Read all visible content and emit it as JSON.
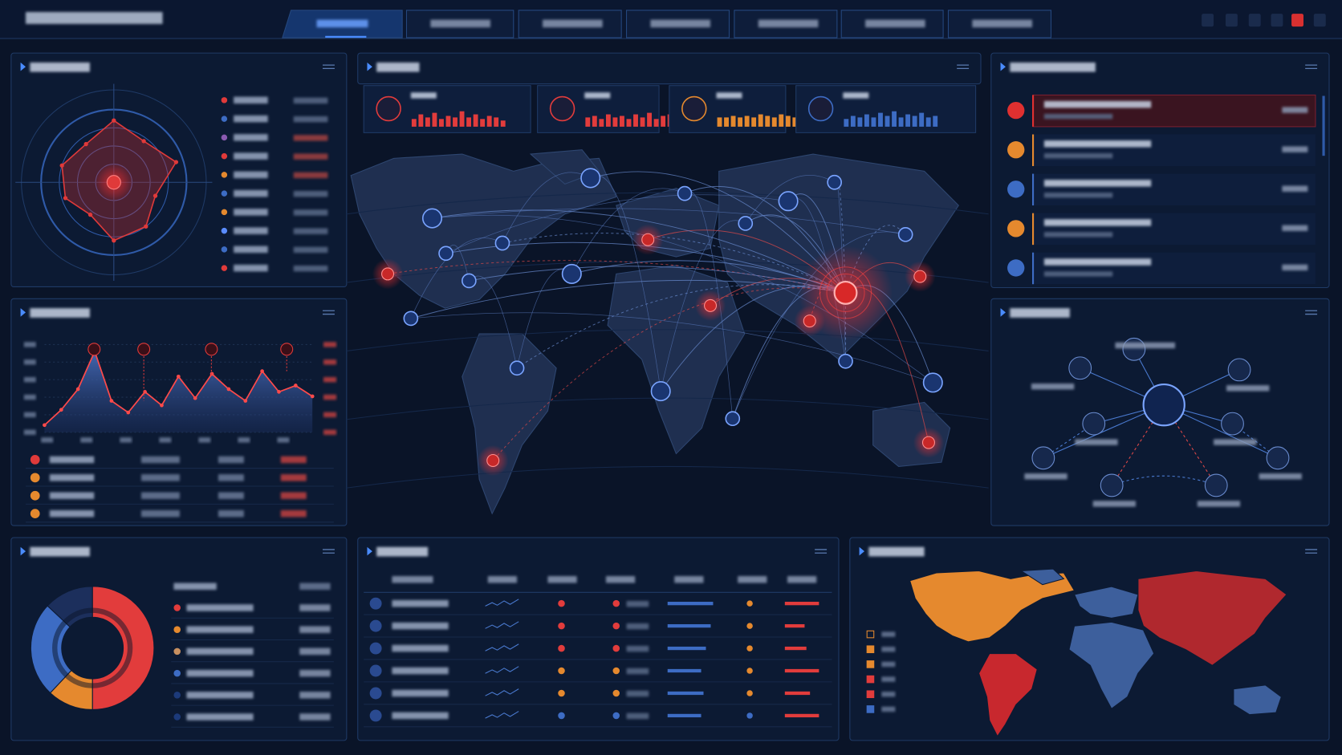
{
  "chart_data": [
    {
      "type": "radar",
      "values": [
        0.85,
        0.7,
        0.9,
        0.6,
        0.75,
        0.8,
        0.55,
        0.7,
        0.75,
        0.65
      ],
      "rlim": [
        0,
        1
      ],
      "color": "#e03a3a"
    },
    {
      "type": "line",
      "values": [
        8,
        25,
        48,
        90,
        35,
        22,
        45,
        30,
        62,
        38,
        65,
        48,
        35,
        68,
        45,
        52,
        40
      ],
      "ylim": [
        0,
        100
      ],
      "color": "#ff4a4a",
      "fill": "#3a5fa8"
    },
    {
      "type": "pie",
      "values": [
        50,
        12,
        25,
        13
      ],
      "colors": [
        "#e23c3c",
        "#e5892e",
        "#3d6cc4",
        "#1c2f5c"
      ]
    },
    {
      "type": "bar",
      "values": [
        0.5,
        0.8,
        0.6,
        0.9,
        0.5,
        0.7,
        0.6,
        1,
        0.6,
        0.8,
        0.5,
        0.7,
        0.6,
        0.4
      ],
      "color": "#e23c3c"
    },
    {
      "type": "bar",
      "values": [
        0.6,
        0.7,
        0.5,
        0.8,
        0.6,
        0.7,
        0.5,
        0.8,
        0.6,
        0.9,
        0.5,
        0.7,
        0.8
      ],
      "color": "#e23c3c"
    },
    {
      "type": "bar",
      "values": [
        0.6,
        0.6,
        0.7,
        0.6,
        0.7,
        0.6,
        0.8,
        0.7,
        0.6,
        0.8,
        0.7,
        0.6,
        0.7
      ],
      "color": "#e5892e"
    },
    {
      "type": "bar",
      "values": [
        0.5,
        0.7,
        0.6,
        0.8,
        0.6,
        0.9,
        0.7,
        1,
        0.6,
        0.8,
        0.7,
        0.9,
        0.6,
        0.7
      ],
      "color": "#3d6cc4"
    },
    {
      "type": "hbar",
      "values": [
        0.95,
        0.9,
        0.8,
        0.7,
        0.75,
        0.7
      ],
      "color": "#3d6cc4"
    },
    {
      "type": "hbar",
      "values": [
        0.95,
        0.55,
        0.6,
        0.95,
        0.7,
        0.95
      ],
      "color": "#e23c3c"
    }
  ]
}
